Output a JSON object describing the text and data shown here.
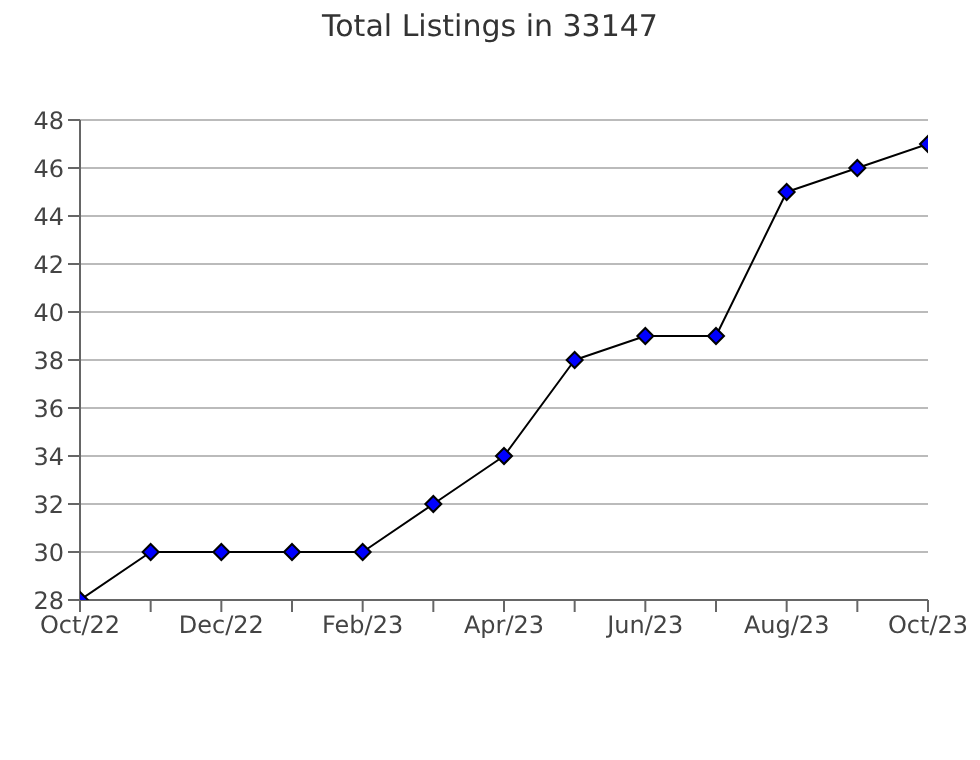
{
  "chart_data": {
    "type": "line",
    "title": "Total Listings in 33147",
    "categories": [
      "Oct/22",
      null,
      "Dec/22",
      null,
      "Feb/23",
      null,
      "Apr/23",
      null,
      "Jun/23",
      null,
      "Aug/23",
      null,
      "Oct/23"
    ],
    "series": [
      {
        "color": "#0000ff",
        "values": [
          28,
          30,
          30,
          30,
          30,
          32,
          34,
          38,
          39,
          39,
          45,
          46,
          47
        ]
      }
    ],
    "ylim": [
      28,
      48
    ],
    "yticks": [
      28,
      30,
      32,
      34,
      36,
      38,
      40,
      42,
      44,
      46,
      48
    ],
    "grid": "y",
    "legend": false,
    "marker": "diamond",
    "line_style": "solid"
  }
}
